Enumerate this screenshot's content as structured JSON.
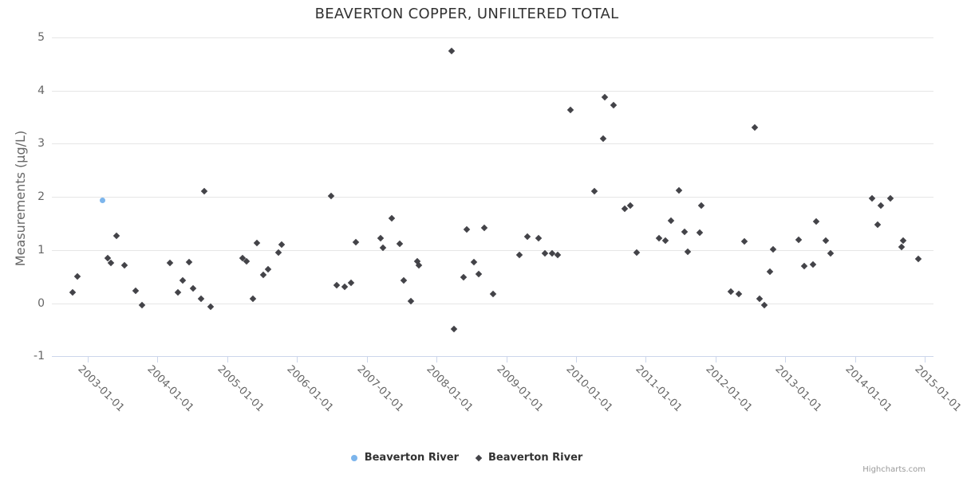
{
  "chart_data": {
    "type": "scatter",
    "title": "BEAVERTON COPPER, UNFILTERED TOTAL",
    "xlabel": "",
    "ylabel": "Measurements (µg/L)",
    "ylim": [
      -1,
      5
    ],
    "yticks": [
      5,
      4,
      3,
      2,
      1,
      0,
      -1
    ],
    "xticks": [
      "2003-01-01",
      "2004-01-01",
      "2005-01-01",
      "2006-01-01",
      "2007-01-01",
      "2008-01-01",
      "2009-01-01",
      "2010-01-01",
      "2011-01-01",
      "2012-01-01",
      "2013-01-01",
      "2014-01-01",
      "2015-01-01"
    ],
    "xlim_years": [
      2002.49,
      2015.13
    ],
    "grid": "horizontal-only",
    "legend_position": "bottom-center",
    "credits": "Highcharts.com",
    "colors": {
      "series1": "#7cb5ec",
      "series2": "#434348",
      "gridline": "#e6e6e6",
      "axis_line": "#ccd6eb",
      "title_text": "#333333",
      "axis_text": "#666666"
    },
    "series": [
      {
        "name": "Beaverton River",
        "marker": "circle",
        "color": "#7cb5ec",
        "points": [
          [
            "2003-03-18",
            1.93
          ]
        ]
      },
      {
        "name": "Beaverton River",
        "marker": "diamond",
        "color": "#434348",
        "points": [
          [
            "2002-10-12",
            0.2
          ],
          [
            "2002-11-07",
            0.5
          ],
          [
            "2003-04-16",
            0.84
          ],
          [
            "2003-05-01",
            0.75
          ],
          [
            "2003-05-30",
            1.27
          ],
          [
            "2003-07-09",
            0.71
          ],
          [
            "2003-09-09",
            0.23
          ],
          [
            "2003-10-12",
            -0.03
          ],
          [
            "2004-03-06",
            0.75
          ],
          [
            "2004-04-15",
            0.2
          ],
          [
            "2004-05-11",
            0.42
          ],
          [
            "2004-06-13",
            0.77
          ],
          [
            "2004-07-05",
            0.27
          ],
          [
            "2004-08-17",
            0.08
          ],
          [
            "2004-09-01",
            2.1
          ],
          [
            "2004-10-04",
            -0.07
          ],
          [
            "2005-03-21",
            0.84
          ],
          [
            "2005-04-12",
            0.78
          ],
          [
            "2005-05-15",
            0.08
          ],
          [
            "2005-06-06",
            1.13
          ],
          [
            "2005-07-05",
            0.53
          ],
          [
            "2005-08-03",
            0.63
          ],
          [
            "2005-09-24",
            0.95
          ],
          [
            "2005-10-12",
            1.1
          ],
          [
            "2006-06-28",
            2.01
          ],
          [
            "2006-07-27",
            0.33
          ],
          [
            "2006-09-09",
            0.3
          ],
          [
            "2006-10-08",
            0.38
          ],
          [
            "2006-11-03",
            1.14
          ],
          [
            "2007-03-14",
            1.22
          ],
          [
            "2007-03-25",
            1.04
          ],
          [
            "2007-05-12",
            1.59
          ],
          [
            "2007-06-21",
            1.11
          ],
          [
            "2007-07-13",
            0.42
          ],
          [
            "2007-08-18",
            0.04
          ],
          [
            "2007-09-20",
            0.78
          ],
          [
            "2007-10-01",
            0.71
          ],
          [
            "2008-03-21",
            4.74
          ],
          [
            "2008-04-01",
            -0.48
          ],
          [
            "2008-05-22",
            0.49
          ],
          [
            "2008-06-06",
            1.38
          ],
          [
            "2008-07-16",
            0.77
          ],
          [
            "2008-08-07",
            0.55
          ],
          [
            "2008-09-09",
            1.42
          ],
          [
            "2008-10-23",
            0.17
          ],
          [
            "2009-03-07",
            0.9
          ],
          [
            "2009-04-20",
            1.25
          ],
          [
            "2009-06-17",
            1.22
          ],
          [
            "2009-07-20",
            0.93
          ],
          [
            "2009-08-29",
            0.94
          ],
          [
            "2009-09-27",
            0.9
          ],
          [
            "2009-12-02",
            3.63
          ],
          [
            "2010-04-05",
            2.1
          ],
          [
            "2010-05-22",
            3.1
          ],
          [
            "2010-05-29",
            3.87
          ],
          [
            "2010-07-16",
            3.73
          ],
          [
            "2010-09-13",
            1.77
          ],
          [
            "2010-10-12",
            1.83
          ],
          [
            "2010-11-14",
            0.95
          ],
          [
            "2011-03-11",
            1.22
          ],
          [
            "2011-04-12",
            1.18
          ],
          [
            "2011-05-11",
            1.55
          ],
          [
            "2011-06-24",
            2.12
          ],
          [
            "2011-07-23",
            1.34
          ],
          [
            "2011-08-07",
            0.97
          ],
          [
            "2011-10-08",
            1.33
          ],
          [
            "2011-10-19",
            1.84
          ],
          [
            "2012-03-21",
            0.22
          ],
          [
            "2012-05-03",
            0.17
          ],
          [
            "2012-06-02",
            1.16
          ],
          [
            "2012-07-23",
            3.3
          ],
          [
            "2012-08-17",
            0.08
          ],
          [
            "2012-09-15",
            -0.03
          ],
          [
            "2012-10-14",
            0.59
          ],
          [
            "2012-10-29",
            1.01
          ],
          [
            "2013-03-11",
            1.19
          ],
          [
            "2013-04-09",
            0.7
          ],
          [
            "2013-05-26",
            0.72
          ],
          [
            "2013-06-13",
            1.53
          ],
          [
            "2013-08-01",
            1.18
          ],
          [
            "2013-08-26",
            0.93
          ],
          [
            "2014-04-01",
            1.97
          ],
          [
            "2014-04-27",
            1.47
          ],
          [
            "2014-05-15",
            1.84
          ],
          [
            "2014-07-02",
            1.97
          ],
          [
            "2014-09-02",
            1.05
          ],
          [
            "2014-09-09",
            1.18
          ],
          [
            "2014-11-29",
            0.83
          ]
        ]
      }
    ]
  }
}
